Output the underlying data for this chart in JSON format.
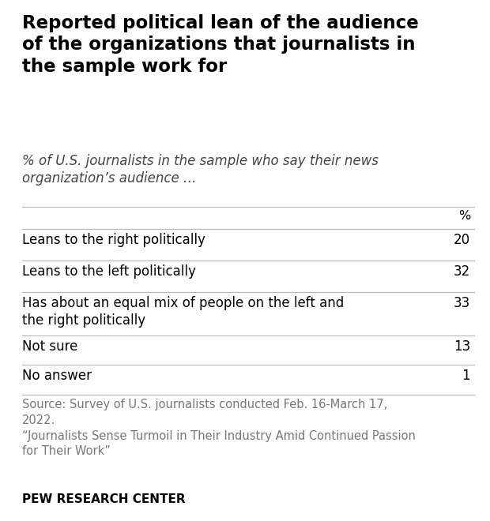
{
  "title": "Reported political lean of the audience\nof the organizations that journalists in\nthe sample work for",
  "subtitle": "% of U.S. journalists in the sample who say their news\norganization’s audience …",
  "col_header": "%",
  "rows": [
    {
      "label": "Leans to the right politically",
      "value": "20"
    },
    {
      "label": "Leans to the left politically",
      "value": "32"
    },
    {
      "label": "Has about an equal mix of people on the left and\nthe right politically",
      "value": "33"
    },
    {
      "label": "Not sure",
      "value": "13"
    },
    {
      "label": "No answer",
      "value": "1"
    }
  ],
  "source_line1": "Source: Survey of U.S. journalists conducted Feb. 16-March 17,",
  "source_line2": "2022.",
  "source_line3": "“Journalists Sense Turmoil in Their Industry Amid Continued Passion",
  "source_line4": "for Their Work”",
  "footer": "PEW RESEARCH CENTER",
  "bg_color": "#ffffff",
  "title_color": "#000000",
  "subtitle_color": "#444444",
  "row_label_color": "#000000",
  "row_value_color": "#000000",
  "source_color": "#777777",
  "footer_color": "#000000",
  "divider_color": "#bbbbbb",
  "title_fontsize": 16.5,
  "subtitle_fontsize": 12.0,
  "header_fontsize": 11.5,
  "row_fontsize": 12.0,
  "source_fontsize": 10.5,
  "footer_fontsize": 11.0
}
